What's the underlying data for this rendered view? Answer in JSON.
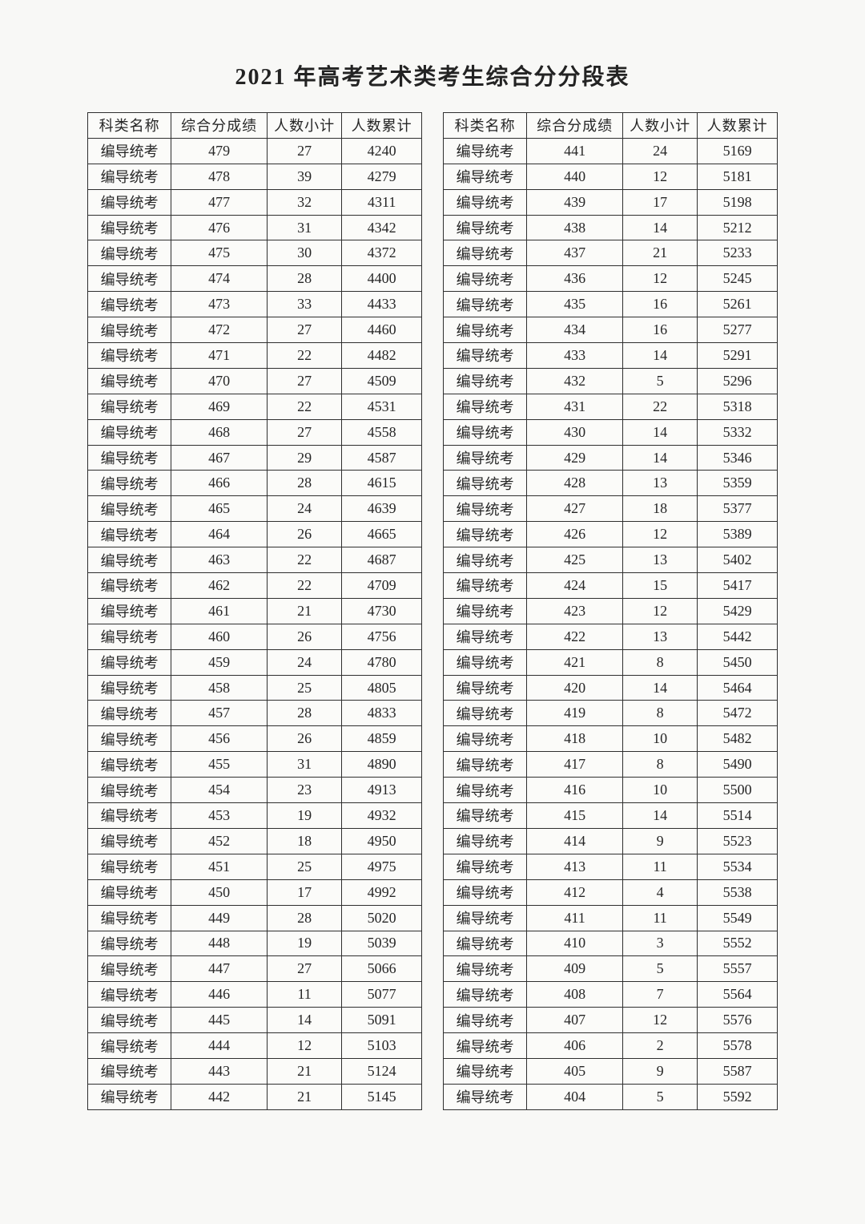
{
  "title": "2021 年高考艺术类考生综合分分段表",
  "category": "编导统考",
  "headers": [
    "科类名称",
    "综合分成绩",
    "人数小计",
    "人数累计"
  ],
  "colors": {
    "background": "#f8f8f6",
    "text": "#262626",
    "border": "#2f2f2f"
  },
  "tables": [
    {
      "rows": [
        [
          479,
          27,
          4240
        ],
        [
          478,
          39,
          4279
        ],
        [
          477,
          32,
          4311
        ],
        [
          476,
          31,
          4342
        ],
        [
          475,
          30,
          4372
        ],
        [
          474,
          28,
          4400
        ],
        [
          473,
          33,
          4433
        ],
        [
          472,
          27,
          4460
        ],
        [
          471,
          22,
          4482
        ],
        [
          470,
          27,
          4509
        ],
        [
          469,
          22,
          4531
        ],
        [
          468,
          27,
          4558
        ],
        [
          467,
          29,
          4587
        ],
        [
          466,
          28,
          4615
        ],
        [
          465,
          24,
          4639
        ],
        [
          464,
          26,
          4665
        ],
        [
          463,
          22,
          4687
        ],
        [
          462,
          22,
          4709
        ],
        [
          461,
          21,
          4730
        ],
        [
          460,
          26,
          4756
        ],
        [
          459,
          24,
          4780
        ],
        [
          458,
          25,
          4805
        ],
        [
          457,
          28,
          4833
        ],
        [
          456,
          26,
          4859
        ],
        [
          455,
          31,
          4890
        ],
        [
          454,
          23,
          4913
        ],
        [
          453,
          19,
          4932
        ],
        [
          452,
          18,
          4950
        ],
        [
          451,
          25,
          4975
        ],
        [
          450,
          17,
          4992
        ],
        [
          449,
          28,
          5020
        ],
        [
          448,
          19,
          5039
        ],
        [
          447,
          27,
          5066
        ],
        [
          446,
          11,
          5077
        ],
        [
          445,
          14,
          5091
        ],
        [
          444,
          12,
          5103
        ],
        [
          443,
          21,
          5124
        ],
        [
          442,
          21,
          5145
        ]
      ]
    },
    {
      "rows": [
        [
          441,
          24,
          5169
        ],
        [
          440,
          12,
          5181
        ],
        [
          439,
          17,
          5198
        ],
        [
          438,
          14,
          5212
        ],
        [
          437,
          21,
          5233
        ],
        [
          436,
          12,
          5245
        ],
        [
          435,
          16,
          5261
        ],
        [
          434,
          16,
          5277
        ],
        [
          433,
          14,
          5291
        ],
        [
          432,
          5,
          5296
        ],
        [
          431,
          22,
          5318
        ],
        [
          430,
          14,
          5332
        ],
        [
          429,
          14,
          5346
        ],
        [
          428,
          13,
          5359
        ],
        [
          427,
          18,
          5377
        ],
        [
          426,
          12,
          5389
        ],
        [
          425,
          13,
          5402
        ],
        [
          424,
          15,
          5417
        ],
        [
          423,
          12,
          5429
        ],
        [
          422,
          13,
          5442
        ],
        [
          421,
          8,
          5450
        ],
        [
          420,
          14,
          5464
        ],
        [
          419,
          8,
          5472
        ],
        [
          418,
          10,
          5482
        ],
        [
          417,
          8,
          5490
        ],
        [
          416,
          10,
          5500
        ],
        [
          415,
          14,
          5514
        ],
        [
          414,
          9,
          5523
        ],
        [
          413,
          11,
          5534
        ],
        [
          412,
          4,
          5538
        ],
        [
          411,
          11,
          5549
        ],
        [
          410,
          3,
          5552
        ],
        [
          409,
          5,
          5557
        ],
        [
          408,
          7,
          5564
        ],
        [
          407,
          12,
          5576
        ],
        [
          406,
          2,
          5578
        ],
        [
          405,
          9,
          5587
        ],
        [
          404,
          5,
          5592
        ]
      ]
    }
  ]
}
